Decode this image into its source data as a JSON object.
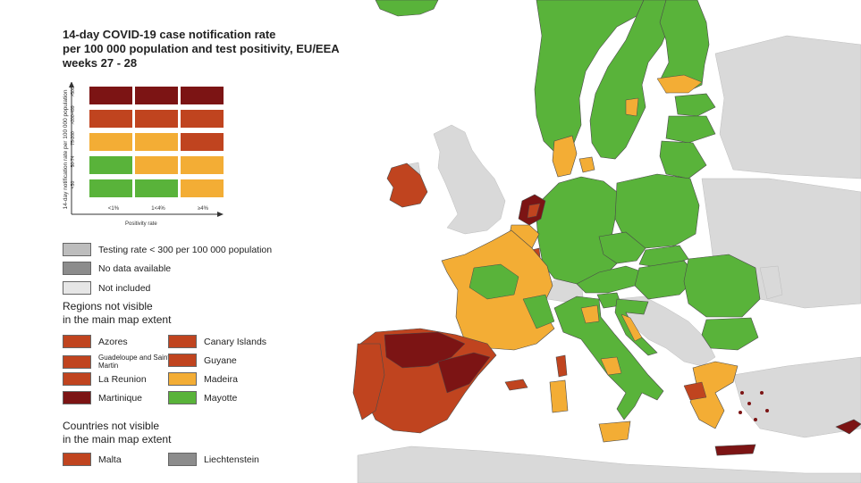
{
  "title_lines": [
    "14-day COVID-19 case notification rate",
    "per 100 000 population and test positivity, EU/EEA",
    "weeks 27 - 28"
  ],
  "colors": {
    "sea": "#ffffff",
    "non_eu_land": "#d9d9d9",
    "testing_low": "#bdbdbd",
    "no_data": "#8c8c8c",
    "not_included": "#e6e6e6",
    "green": "#59b33a",
    "orange": "#f3ad35",
    "red": "#c0441f",
    "dark_red": "#7c1414",
    "border": "#4a4a4a"
  },
  "matrix": {
    "y_axis_title": "14-day notification rate per 100 000 population",
    "x_axis_title": "Positivity rate",
    "row_labels": [
      ">500",
      ">200-499",
      "75-200",
      "50-74",
      "<50"
    ],
    "col_labels": [
      "<1%",
      "1<4%",
      "≥4%"
    ],
    "cells": [
      [
        "dark_red",
        "dark_red",
        "dark_red"
      ],
      [
        "red",
        "red",
        "red"
      ],
      [
        "orange",
        "orange",
        "red"
      ],
      [
        "green",
        "orange",
        "orange"
      ],
      [
        "green",
        "green",
        "orange"
      ]
    ]
  },
  "legend": {
    "testing_low": "Testing rate < 300 per 100 000 population",
    "no_data": "No data available",
    "not_included": "Not included"
  },
  "regions_heading": [
    "Regions not visible",
    "in the main map extent"
  ],
  "regions": [
    {
      "label": "Azores",
      "color": "red"
    },
    {
      "label": "Canary Islands",
      "color": "red"
    },
    {
      "label": "Guadeloupe and Saint Martin",
      "color": "red"
    },
    {
      "label": "Guyane",
      "color": "red"
    },
    {
      "label": "La Reunion",
      "color": "red"
    },
    {
      "label": "Madeira",
      "color": "orange"
    },
    {
      "label": "Martinique",
      "color": "dark_red"
    },
    {
      "label": "Mayotte",
      "color": "green"
    }
  ],
  "countries_heading": [
    "Countries not visible",
    "in the main map extent"
  ],
  "countries": [
    {
      "label": "Malta",
      "color": "red"
    },
    {
      "label": "Liechtenstein",
      "color": "no_data"
    }
  ]
}
